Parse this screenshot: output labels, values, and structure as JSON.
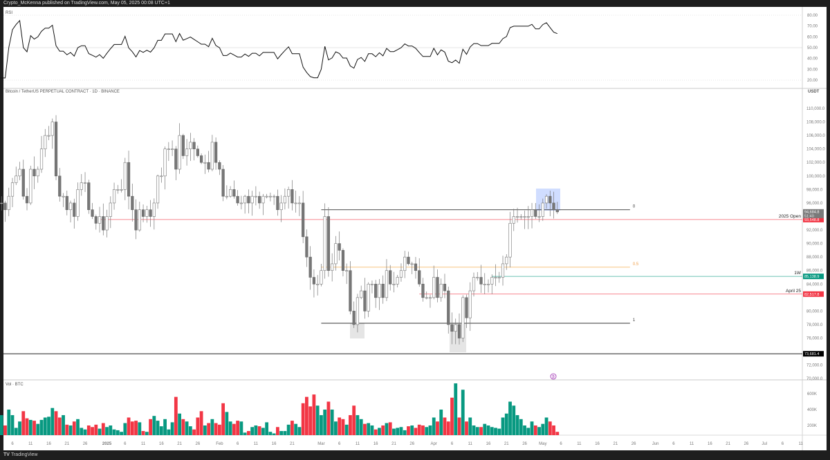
{
  "header": {
    "publisher_line": "Crypto_McKenna published on TradingView.com, May 05, 2025 00:08 UTC+1"
  },
  "footer": {
    "logo_mark": "TV",
    "brand": "TradingView"
  },
  "rsi_pane": {
    "title": "RSI",
    "ticks": [
      "80.00",
      "70.00",
      "60.00",
      "50.00",
      "40.00",
      "30.00",
      "20.00"
    ],
    "tick_values": [
      80,
      70,
      60,
      50,
      40,
      30,
      20
    ],
    "period": 14
  },
  "price_pane": {
    "symbol": "Bitcoin / TetherUS PERPETUAL CONTRACT · 1D · BINANCE",
    "currency": "USDT",
    "ticks": [
      "110,000.0",
      "108,000.0",
      "106,000.0",
      "104,000.0",
      "102,000.0",
      "100,000.0",
      "98,000.0",
      "96,000.0",
      "92,000.0",
      "90,000.0",
      "88,000.0",
      "86,000.0",
      "84,000.0",
      "80,000.0",
      "78,000.0",
      "76,000.0",
      "72,000.0",
      "70,000.0"
    ],
    "tick_values": [
      110000,
      108000,
      106000,
      104000,
      102000,
      100000,
      98000,
      96000,
      92000,
      90000,
      88000,
      86000,
      84000,
      80000,
      78000,
      76000,
      72000,
      70000
    ],
    "last_price": "94,684.8",
    "countdown": "51:40",
    "levels": [
      {
        "name": "2025 Open",
        "value": 93548.8,
        "label": "93,548.8",
        "color": "#f23645",
        "start_day": 29
      },
      {
        "name": "1W",
        "value": 85138.9,
        "label": "85,138.9",
        "color": "#089981",
        "start_day": 137
      },
      {
        "name": "April 25",
        "value": 82517.8,
        "label": "82,517.8",
        "color": "#f23645",
        "start_day": 117
      },
      {
        "name": "",
        "value": 73681.4,
        "label": "73,681.4",
        "color": "#000000",
        "start_day": -2
      }
    ],
    "fib": [
      {
        "level": "0",
        "value": 95000,
        "color": "#333333"
      },
      {
        "level": "0.5",
        "value": 86500,
        "color": "#f7b96b"
      },
      {
        "level": "1",
        "value": 78200,
        "color": "#333333"
      }
    ],
    "fib_start_day": 90,
    "fib_end_day": 175
  },
  "volume_pane": {
    "title": "Vol · BTC",
    "ticks": [
      "600K",
      "400K",
      "200K"
    ],
    "tick_values": [
      600,
      400,
      200
    ],
    "up_color": "#089981",
    "down_color": "#f23645"
  },
  "chart_data": {
    "type": "candlestick",
    "title": "Bitcoin / TetherUS PERPETUAL CONTRACT · 1D · BINANCE",
    "start_date": "2024-12-01",
    "closes_k": [
      97,
      96,
      96,
      95,
      97,
      99,
      100,
      101,
      97,
      96,
      101,
      100,
      101,
      104,
      106,
      106,
      108,
      100,
      97,
      97,
      95,
      96,
      94,
      98,
      99,
      99,
      95,
      94,
      93,
      94,
      92,
      94,
      96,
      98,
      98,
      98,
      102,
      97,
      95,
      92,
      95,
      94,
      95,
      94,
      96,
      100,
      100,
      104,
      104,
      104,
      101,
      106,
      103,
      104,
      105,
      104,
      103,
      102,
      102,
      101,
      105,
      102,
      101,
      97,
      97,
      98,
      97,
      96,
      96,
      97,
      96,
      97,
      97,
      96,
      97,
      97,
      97,
      97,
      95,
      96,
      97,
      98,
      96,
      96,
      96,
      91,
      88,
      85,
      84,
      84,
      86,
      94,
      86,
      87,
      90,
      89,
      86,
      86,
      80,
      78,
      82,
      83,
      80,
      84,
      84,
      82,
      84,
      82,
      86,
      84,
      84,
      85,
      86,
      88,
      87,
      87,
      86,
      84,
      82,
      82,
      82,
      85,
      82,
      84,
      83,
      78,
      77,
      78,
      76,
      82,
      79,
      83,
      85,
      85,
      84,
      84,
      84,
      85,
      85,
      85,
      87,
      88,
      93,
      94,
      94,
      94,
      94,
      94,
      95,
      94,
      94,
      96,
      97,
      96,
      95,
      94.68
    ],
    "volumes_k": [
      280,
      250,
      330,
      200,
      400,
      330,
      170,
      250,
      380,
      290,
      270,
      260,
      220,
      270,
      300,
      310,
      420,
      380,
      300,
      330,
      210,
      200,
      250,
      280,
      170,
      150,
      200,
      180,
      210,
      160,
      230,
      180,
      200,
      150,
      140,
      120,
      230,
      300,
      250,
      260,
      240,
      130,
      120,
      280,
      320,
      260,
      190,
      280,
      150,
      240,
      560,
      350,
      280,
      250,
      190,
      150,
      300,
      380,
      200,
      230,
      280,
      230,
      210,
      480,
      370,
      250,
      220,
      260,
      250,
      110,
      130,
      180,
      200,
      190,
      170,
      240,
      120,
      100,
      180,
      130,
      130,
      210,
      260,
      220,
      180,
      480,
      560,
      440,
      590,
      450,
      330,
      400,
      500,
      400,
      250,
      300,
      280,
      210,
      330,
      450,
      330,
      280,
      220,
      230,
      200,
      150,
      170,
      200,
      230,
      240,
      160,
      170,
      180,
      140,
      190,
      200,
      170,
      210,
      200,
      180,
      200,
      300,
      250,
      400,
      300,
      250,
      550,
      730,
      300,
      650,
      250,
      300,
      200,
      180,
      180,
      220,
      200,
      180,
      170,
      160,
      300,
      350,
      500,
      450,
      330,
      280,
      200,
      170,
      250,
      200,
      180,
      220,
      300,
      250,
      200,
      120
    ],
    "x_ticks": [
      {
        "label": "6",
        "day": 5
      },
      {
        "label": "11",
        "day": 10
      },
      {
        "label": "16",
        "day": 15
      },
      {
        "label": "21",
        "day": 20
      },
      {
        "label": "26",
        "day": 25
      },
      {
        "label": "2025",
        "day": 31
      },
      {
        "label": "6",
        "day": 36
      },
      {
        "label": "11",
        "day": 41
      },
      {
        "label": "16",
        "day": 46
      },
      {
        "label": "21",
        "day": 51
      },
      {
        "label": "26",
        "day": 56
      },
      {
        "label": "Feb",
        "day": 62
      },
      {
        "label": "6",
        "day": 67
      },
      {
        "label": "11",
        "day": 72
      },
      {
        "label": "16",
        "day": 77
      },
      {
        "label": "21",
        "day": 82
      },
      {
        "label": "Mar",
        "day": 90
      },
      {
        "label": "6",
        "day": 95
      },
      {
        "label": "11",
        "day": 100
      },
      {
        "label": "16",
        "day": 105
      },
      {
        "label": "21",
        "day": 110
      },
      {
        "label": "26",
        "day": 115
      },
      {
        "label": "Apr",
        "day": 121
      },
      {
        "label": "6",
        "day": 126
      },
      {
        "label": "11",
        "day": 131
      },
      {
        "label": "16",
        "day": 136
      },
      {
        "label": "21",
        "day": 141
      },
      {
        "label": "26",
        "day": 146
      },
      {
        "label": "May",
        "day": 151
      },
      {
        "label": "6",
        "day": 156
      },
      {
        "label": "11",
        "day": 161
      },
      {
        "label": "16",
        "day": 166
      },
      {
        "label": "21",
        "day": 171
      },
      {
        "label": "26",
        "day": 176
      },
      {
        "label": "Jun",
        "day": 182
      },
      {
        "label": "6",
        "day": 187
      },
      {
        "label": "11",
        "day": 192
      },
      {
        "label": "16",
        "day": 197
      },
      {
        "label": "21",
        "day": 202
      },
      {
        "label": "26",
        "day": 207
      },
      {
        "label": "Jul",
        "day": 212
      },
      {
        "label": "6",
        "day": 217
      },
      {
        "label": "11",
        "day": 222
      }
    ],
    "ylim": [
      69000,
      113000
    ],
    "up_color": "#ffffff",
    "down_color": "#777777"
  }
}
